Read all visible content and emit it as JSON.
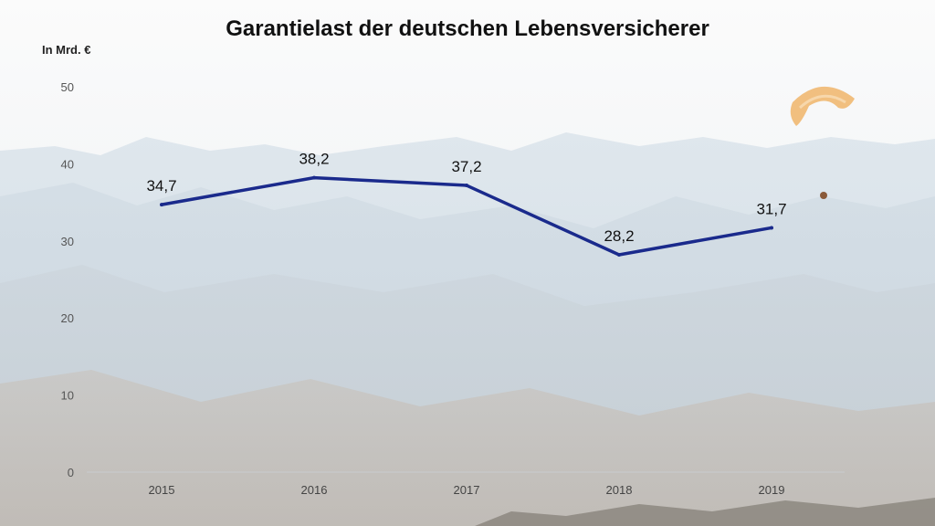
{
  "chart_data": {
    "type": "line",
    "title": "Garantielast der deutschen Lebensversicherer",
    "ylabel": "In Mrd. €",
    "xlabel": "",
    "categories": [
      "2015",
      "2016",
      "2017",
      "2018",
      "2019"
    ],
    "series": [
      {
        "values": [
          34.7,
          38.2,
          37.2,
          28.2,
          31.7
        ],
        "labels": [
          "34,7",
          "38,2",
          "37,2",
          "28,2",
          "31,7"
        ]
      }
    ],
    "ylim": [
      0,
      50
    ],
    "yticks": [
      "0",
      "10",
      "20",
      "30",
      "40",
      "50"
    ],
    "grid": false,
    "line_color": "#1a2a8c"
  },
  "background": {
    "description_icon": "paraglider-icon"
  }
}
